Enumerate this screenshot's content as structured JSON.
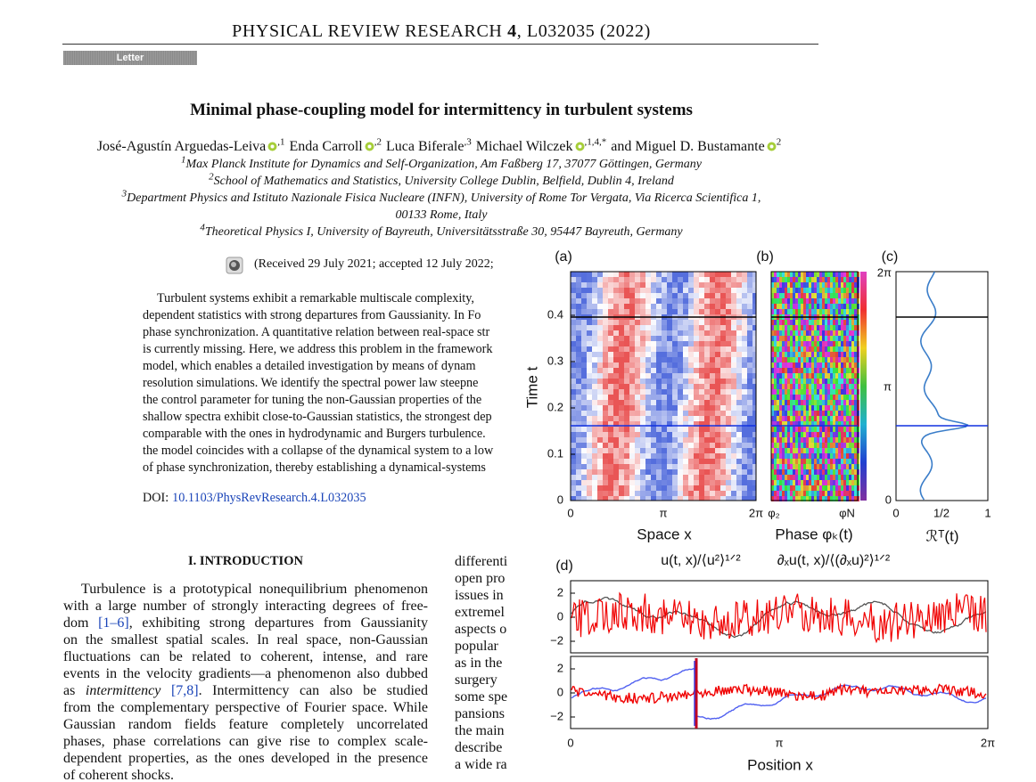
{
  "header": {
    "journal": "PHYSICAL REVIEW RESEARCH",
    "volume": "4",
    "citation": ", L032035 (2022)"
  },
  "section_label": "Letter",
  "title": "Minimal phase-coupling model for intermittency in turbulent systems",
  "authors": [
    {
      "name": "José-Agustín Arguedas-Leiva",
      "orcid": true,
      "sup": ",1"
    },
    {
      "name": "Enda Carroll",
      "orcid": true,
      "sup": ",2"
    },
    {
      "name": "Luca Biferale",
      "orcid": false,
      "sup": ",3"
    },
    {
      "name": "Michael Wilczek",
      "orcid": true,
      "sup": ",1,4,*"
    },
    {
      "prefix": "and",
      "name": "Miguel D. Bustamante",
      "orcid": true,
      "sup": "2"
    }
  ],
  "affiliations": [
    {
      "num": "1",
      "lines": [
        "Max Planck Institute for Dynamics and Self-Organization, Am Faßberg 17, 37077 Göttingen, Germany"
      ]
    },
    {
      "num": "2",
      "lines": [
        "School of Mathematics and Statistics, University College Dublin, Belfield, Dublin 4, Ireland"
      ]
    },
    {
      "num": "3",
      "lines": [
        "Department Physics and Istituto Nazionale Fisica Nucleare (INFN), University of Rome Tor Vergata, Via Ricerca Scientifica 1,",
        "00133 Rome, Italy"
      ]
    },
    {
      "num": "4",
      "lines": [
        "Theoretical Physics I, University of Bayreuth, Universitätsstraße 30, 95447 Bayreuth, Germany"
      ]
    }
  ],
  "received": "(Received 29 July 2021; accepted 12 July 2022;",
  "abstract": [
    "Turbulent systems exhibit a remarkable multiscale complexity,",
    "dependent statistics with strong departures from Gaussianity. In Fo",
    "phase synchronization. A quantitative relation between real-space str",
    "is currently missing. Here, we address this problem in the framework",
    "model, which enables a detailed investigation by means of dynam",
    "resolution simulations. We identify the spectral power law steepne",
    "the control parameter for tuning the non-Gaussian properties of the",
    "shallow spectra exhibit close-to-Gaussian statistics, the strongest dep",
    "comparable with the ones in hydrodynamic and Burgers turbulence.",
    "the model coincides with a collapse of the dynamical system to a low",
    "of phase synchronization, thereby establishing a dynamical-systems"
  ],
  "doi": {
    "label": "DOI:",
    "link": "10.1103/PhysRevResearch.4.L032035"
  },
  "intro": {
    "heading": "I. INTRODUCTION",
    "lines": [
      [
        "Turbulence is a prototypical nonequilibrium phenomenon"
      ],
      [
        "with a large number of strongly interacting degrees of free-"
      ],
      [
        "dom ",
        {
          "text": "[1–6]",
          "style": "link"
        },
        ", exhibiting strong departures from Gaussianity"
      ],
      [
        "on the smallest spatial scales. In real space, non-Gaussian"
      ],
      [
        "fluctuations can be related to coherent, intense, and rare"
      ],
      [
        "events in the velocity gradients—a phenomenon also dubbed"
      ],
      [
        "as ",
        {
          "text": "intermittency",
          "style": "italic"
        },
        " ",
        {
          "text": "[7,8]",
          "style": "link"
        },
        ". Intermittency can also be studied"
      ],
      [
        "from the complementary perspective of Fourier space. While"
      ],
      [
        "Gaussian random fields feature completely uncorrelated"
      ],
      [
        "phases, phase correlations can give rise to complex scale-"
      ],
      [
        "dependent properties, as the ones developed in the presence"
      ],
      [
        "of coherent shocks."
      ]
    ]
  },
  "column2": [
    "differenti",
    "open pro",
    "issues in",
    "extremel",
    "aspects o",
    "popular",
    "as in the",
    "surgery",
    "some spe",
    "pansions",
    "the main",
    "describe",
    "a wide ra"
  ],
  "figure": {
    "panel_labels": [
      "(a)",
      "(b)",
      "(c)",
      "(d)"
    ],
    "a": {
      "yticks": [
        "0.4",
        "0.3",
        "0.2",
        "0.1",
        "0"
      ],
      "xticks": [
        "0",
        "π",
        "2π"
      ],
      "ylabel": "Time t",
      "xlabel": "Space x"
    },
    "b": {
      "xticks": [
        "φ₂",
        "φN"
      ],
      "xlabel": "Phase φₖ(t)"
    },
    "c": {
      "yticks": [
        "2π",
        "π",
        "0"
      ],
      "xticks": [
        "0",
        "1/2",
        "1"
      ],
      "xlabel": "ℛᵀ(t)"
    },
    "d": {
      "titles": [
        "u(t, x)/⟨u²⟩¹ᐟ²",
        "∂ₓu(t, x)/⟨(∂ₓu)²⟩¹ᐟ²"
      ],
      "yticks_upper": [
        "2",
        "0",
        "−2"
      ],
      "yticks_lower": [
        "2",
        "0",
        "−2"
      ],
      "xticks": [
        "0",
        "π",
        "2π"
      ],
      "xlabel": "Position x"
    }
  }
}
